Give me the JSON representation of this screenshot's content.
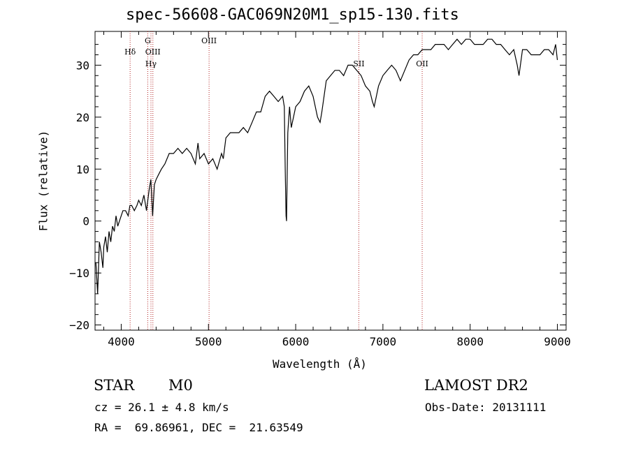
{
  "chart_data": {
    "type": "line",
    "title": "spec-56608-GAC069N20M1_sp15-130.fits",
    "xlabel": "Wavelength (Å)",
    "ylabel": "Flux (relative)",
    "xlim": [
      3700,
      9100
    ],
    "ylim": [
      -21,
      36.5
    ],
    "xticks": [
      4000,
      5000,
      6000,
      7000,
      8000,
      9000
    ],
    "yticks": [
      -20,
      -10,
      0,
      10,
      20,
      30
    ],
    "line_color": "#000000",
    "marker_color": "#b22222",
    "series": [
      {
        "x": [
          3710,
          3730,
          3750,
          3770,
          3790,
          3800,
          3820,
          3840,
          3860,
          3880,
          3900,
          3920,
          3940,
          3960,
          3980,
          4000,
          4020,
          4050,
          4080,
          4100,
          4120,
          4150,
          4180,
          4200,
          4230,
          4260,
          4290,
          4320,
          4340,
          4360,
          4380,
          4400,
          4430,
          4460,
          4500,
          4550,
          4600,
          4650,
          4700,
          4750,
          4800,
          4850,
          4880,
          4900,
          4950,
          5000,
          5050,
          5100,
          5150,
          5170,
          5200,
          5250,
          5300,
          5350,
          5400,
          5450,
          5500,
          5550,
          5600,
          5650,
          5700,
          5750,
          5800,
          5850,
          5870,
          5880,
          5890,
          5895,
          5900,
          5910,
          5930,
          5950,
          6000,
          6050,
          6100,
          6150,
          6200,
          6250,
          6280,
          6300,
          6350,
          6400,
          6450,
          6500,
          6550,
          6600,
          6650,
          6700,
          6750,
          6800,
          6850,
          6880,
          6900,
          6950,
          7000,
          7050,
          7100,
          7150,
          7200,
          7250,
          7300,
          7350,
          7400,
          7450,
          7500,
          7550,
          7600,
          7650,
          7700,
          7750,
          7800,
          7850,
          7900,
          7950,
          8000,
          8050,
          8100,
          8150,
          8200,
          8250,
          8300,
          8350,
          8400,
          8450,
          8500,
          8540,
          8560,
          8600,
          8650,
          8700,
          8750,
          8800,
          8850,
          8900,
          8950,
          8980,
          9000
        ],
        "y": [
          -8,
          -14,
          -4,
          -6,
          -9,
          -5,
          -3,
          -6,
          -2,
          -4,
          -1,
          -2,
          1,
          -1,
          0,
          1,
          2,
          2,
          1,
          3,
          3,
          2,
          3,
          4,
          3,
          5,
          2,
          6,
          8,
          1,
          7,
          8,
          9,
          10,
          11,
          13,
          13,
          14,
          13,
          14,
          13,
          11,
          15,
          12,
          13,
          11,
          12,
          10,
          13,
          12,
          16,
          17,
          17,
          17,
          18,
          17,
          19,
          21,
          21,
          24,
          25,
          24,
          23,
          24,
          22,
          10,
          1,
          0,
          6,
          17,
          22,
          18,
          22,
          23,
          25,
          26,
          24,
          20,
          19,
          21,
          27,
          28,
          29,
          29,
          28,
          30,
          30,
          29,
          28,
          26,
          25,
          23,
          22,
          26,
          28,
          29,
          30,
          29,
          27,
          29,
          31,
          32,
          32,
          33,
          33,
          33,
          34,
          34,
          34,
          33,
          34,
          35,
          34,
          35,
          35,
          34,
          34,
          34,
          35,
          35,
          34,
          34,
          33,
          32,
          33,
          30,
          28,
          33,
          33,
          32,
          32,
          32,
          33,
          33,
          32,
          34,
          31
        ]
      }
    ],
    "annotations": [
      {
        "label": "Hδ",
        "x": 4102,
        "row": 2
      },
      {
        "label": "G",
        "x": 4304,
        "row": 1
      },
      {
        "label": "OIII",
        "x": 4363,
        "row": 2
      },
      {
        "label": "Hγ",
        "x": 4341,
        "row": 3
      },
      {
        "label": "OIII",
        "x": 5007,
        "row": 1
      },
      {
        "label": "SII",
        "x": 6724,
        "row": 3
      },
      {
        "label": "OII",
        "x": 7450,
        "row": 3
      }
    ]
  },
  "footer": {
    "class": "STAR",
    "subclass": "M0",
    "survey": "LAMOST DR2",
    "cz": "cz = 26.1 ± 4.8 km/s",
    "obs_date": "Obs-Date: 20131111",
    "coords": "RA =  69.86961, DEC =  21.63549"
  }
}
